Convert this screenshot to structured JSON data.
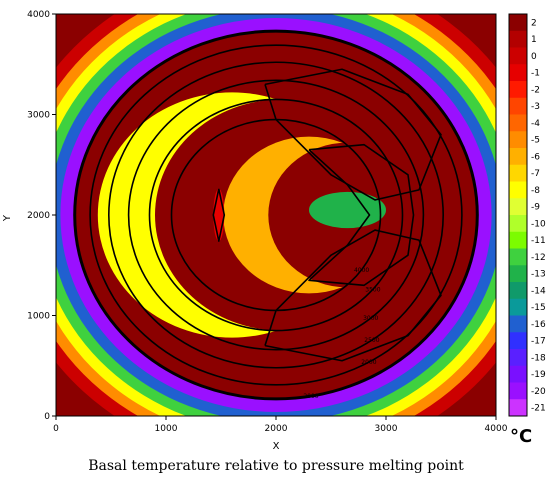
{
  "chart_data": {
    "type": "heatmap",
    "title": "Basal temperature relative to pressure melting point",
    "xlabel": "X",
    "ylabel": "Y",
    "xlim": [
      0,
      4000
    ],
    "ylim": [
      0,
      4000
    ],
    "x_ticks": [
      0,
      1000,
      2000,
      3000,
      4000
    ],
    "y_ticks": [
      0,
      1000,
      2000,
      3000,
      4000
    ],
    "colorbar": {
      "unit": "°C",
      "labels": [
        "2",
        "1",
        "0",
        "-1",
        "-2",
        "-3",
        "-4",
        "-5",
        "-6",
        "-7",
        "-8",
        "-9",
        "-10",
        "-11",
        "-12",
        "-13",
        "-14",
        "-15",
        "-16",
        "-17",
        "-18",
        "-19",
        "-20",
        "-21"
      ],
      "colors": [
        "#8B0000",
        "#b30000",
        "#cc0000",
        "#e60000",
        "#ff1a00",
        "#ff4500",
        "#ff6600",
        "#ff8c00",
        "#ffb000",
        "#ffd700",
        "#ffff00",
        "#e0ff33",
        "#b0ff2a",
        "#7cfc00",
        "#3fd13f",
        "#20b24a",
        "#109a6a",
        "#0a9a9a",
        "#2060d0",
        "#3030ff",
        "#5a20ff",
        "#7a10ff",
        "#9a10ff",
        "#cc33ff"
      ]
    },
    "field": {
      "center": [
        2000,
        2000
      ],
      "ice_radius": 1830,
      "rings": [
        {
          "r_min": 2480,
          "r_max": 4000,
          "value": 2
        },
        {
          "r_min": 2360,
          "r_max": 2480,
          "value": 0
        },
        {
          "r_min": 2260,
          "r_max": 2360,
          "value": -5
        },
        {
          "r_min": 2160,
          "r_max": 2260,
          "value": -8
        },
        {
          "r_min": 2060,
          "r_max": 2160,
          "value": -12
        },
        {
          "r_min": 1960,
          "r_max": 2060,
          "value": -16
        },
        {
          "r_min": 1830,
          "r_max": 1960,
          "value": -20
        },
        {
          "r_min": 0,
          "r_max": 1830,
          "value": 2
        }
      ],
      "crescent": {
        "outer_center": [
          1600,
          2000
        ],
        "outer_radius": 1220,
        "inner_center": [
          2050,
          2000
        ],
        "inner_radius": 1150,
        "value": -8
      },
      "inner_crescent": {
        "outer_center": [
          2300,
          2000
        ],
        "outer_radius": 780,
        "inner_center": [
          2650,
          2000
        ],
        "inner_radius": 720,
        "value": -6
      },
      "green_patch": {
        "center": [
          2650,
          2050
        ],
        "rx": 350,
        "ry": 180,
        "value": -13
      },
      "lenses": [
        {
          "center": [
            1480,
            2000
          ],
          "rx": 50,
          "ry": 260,
          "value": -1
        }
      ]
    },
    "contours": {
      "center": [
        2000,
        2000
      ],
      "radii": [
        1830,
        1690,
        1520,
        1340,
        1150,
        950
      ],
      "labels": [
        "2000",
        "2000",
        "2500",
        "3000",
        "3500",
        "4000"
      ],
      "label_angles_deg": [
        -80,
        -60,
        -55,
        -50,
        -40,
        -35
      ],
      "lobes": [
        {
          "points": [
            [
              1900,
              3300
            ],
            [
              2600,
              3450
            ],
            [
              3200,
              3200
            ],
            [
              3500,
              2800
            ],
            [
              3300,
              2250
            ],
            [
              2900,
              2150
            ],
            [
              2500,
              2400
            ],
            [
              2000,
              2950
            ],
            [
              1900,
              3300
            ]
          ]
        },
        {
          "points": [
            [
              1900,
              700
            ],
            [
              2600,
              550
            ],
            [
              3200,
              800
            ],
            [
              3500,
              1200
            ],
            [
              3300,
              1750
            ],
            [
              2900,
              1850
            ],
            [
              2500,
              1600
            ],
            [
              2000,
              1050
            ],
            [
              1900,
              700
            ]
          ]
        },
        {
          "points": [
            [
              2300,
              2650
            ],
            [
              2800,
              2700
            ],
            [
              3200,
              2400
            ],
            [
              3250,
              2000
            ],
            [
              3200,
              1600
            ],
            [
              2800,
              1300
            ],
            [
              2300,
              1350
            ],
            [
              2650,
              1700
            ],
            [
              2850,
              2000
            ],
            [
              2650,
              2300
            ],
            [
              2300,
              2650
            ]
          ]
        },
        {
          "points": [
            [
              1480,
              2260
            ],
            [
              1530,
              2000
            ],
            [
              1480,
              1740
            ],
            [
              1430,
              2000
            ],
            [
              1480,
              2260
            ]
          ]
        }
      ]
    }
  }
}
